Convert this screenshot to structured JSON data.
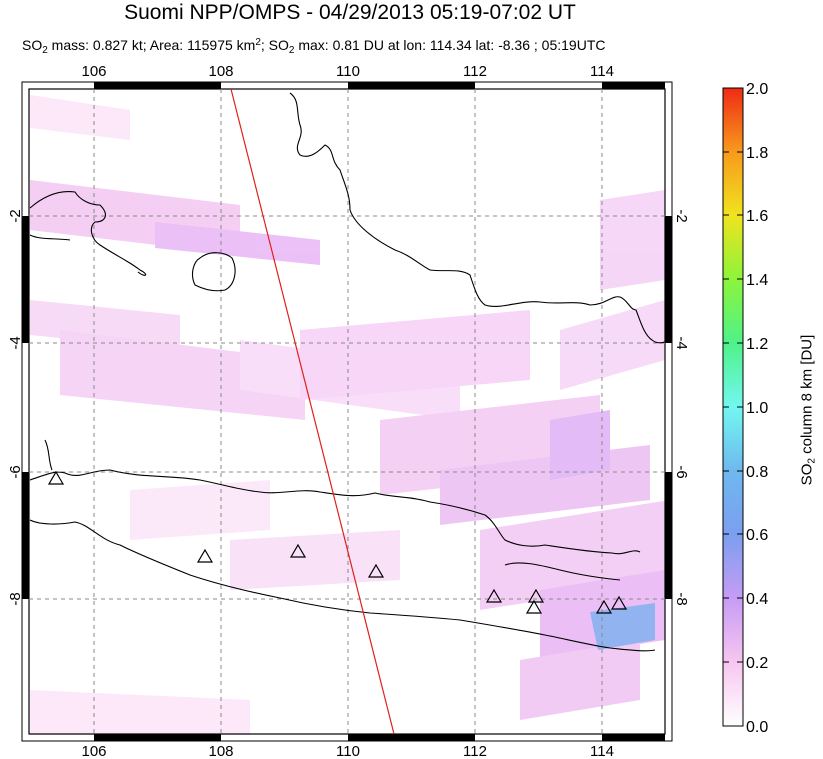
{
  "title": "Suomi NPP/OMPS - 04/29/2013 05:19-07:02 UT",
  "subtitle": {
    "mass_prefix": "SO",
    "mass_sub": "2",
    "mass_text": " mass: 0.827 kt; Area: 115975 km",
    "area_sup": "2",
    "max_prefix": "; SO",
    "max_sub": "2",
    "max_text": " max: 0.81 DU at lon: 114.34 lat: -8.36 ; 05:19UTC"
  },
  "map": {
    "lon_ticks": [
      "106",
      "108",
      "110",
      "112",
      "114"
    ],
    "lat_ticks": [
      "-2",
      "-4",
      "-6",
      "-8"
    ],
    "lon_range": [
      105,
      115
    ],
    "lat_range": [
      -10.2,
      0.2
    ]
  },
  "colorbar": {
    "ticks": [
      "2.0",
      "1.8",
      "1.6",
      "1.4",
      "1.2",
      "1.0",
      "0.8",
      "0.6",
      "0.4",
      "0.2",
      "0.0"
    ],
    "title_prefix": "SO",
    "title_sub": "2",
    "title_text": " column 8 km [DU]",
    "colors": [
      "#ffffff",
      "#f7c6f0",
      "#c69cf5",
      "#7b9fef",
      "#6fe4ef",
      "#72f7e0",
      "#4ff28a",
      "#8cf43b",
      "#f0e31f",
      "#f89a1d",
      "#ef2b14"
    ]
  },
  "volcanoes_count_visible": 10
}
